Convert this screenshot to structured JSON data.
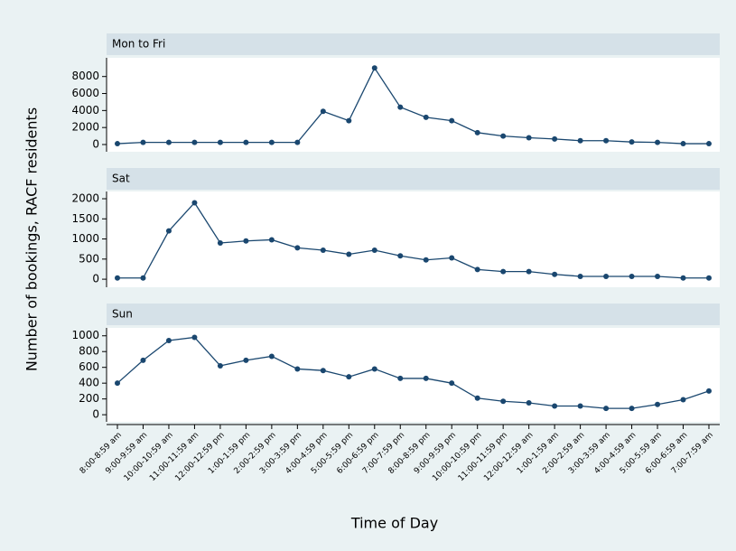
{
  "y_label": "Number of bookings, RACF residents",
  "x_label": "Time of Day",
  "categories": [
    "8:00-8:59 am",
    "9:00-9:59 am",
    "10:00-10:59 am",
    "11:00-11:59 am",
    "12:00-12:59 pm",
    "1:00-1:59 pm",
    "2:00-2:59 pm",
    "3:00-3:59 pm",
    "4:00-4:59 pm",
    "5:00-5:59 pm",
    "6:00-6:59 pm",
    "7:00-7:59 pm",
    "8:00-8:59 pm",
    "9:00-9:59 pm",
    "10:00-10:59 pm",
    "11:00-11:59 pm",
    "12:00-12:59 am",
    "1:00-1:59 am",
    "2:00-2:59 am",
    "3:00-3:59 am",
    "4:00-4:59 am",
    "5:00-5:59 am",
    "6:00-6:59 am",
    "7:00-7:59 am"
  ],
  "chart_data": [
    {
      "type": "line",
      "title": "Mon to Fri",
      "color": "#1a476f",
      "grid": false,
      "values": [
        100,
        250,
        250,
        250,
        250,
        250,
        250,
        250,
        3900,
        2800,
        9000,
        4400,
        3200,
        2800,
        1400,
        1000,
        800,
        650,
        450,
        450,
        300,
        250,
        100,
        100
      ],
      "ylim": [
        -850,
        10200
      ],
      "yticks": [
        0,
        2000,
        4000,
        6000,
        8000
      ]
    },
    {
      "type": "line",
      "title": "Sat",
      "color": "#1a476f",
      "grid": false,
      "values": [
        30,
        30,
        1200,
        1900,
        900,
        950,
        980,
        780,
        720,
        620,
        720,
        580,
        480,
        530,
        240,
        190,
        190,
        120,
        70,
        70,
        70,
        70,
        30,
        30
      ],
      "ylim": [
        -200,
        2180
      ],
      "yticks": [
        0,
        500,
        1000,
        1500,
        2000
      ]
    },
    {
      "type": "line",
      "title": "Sun",
      "color": "#1a476f",
      "grid": false,
      "values": [
        400,
        690,
        940,
        980,
        620,
        690,
        740,
        580,
        560,
        480,
        580,
        460,
        460,
        400,
        210,
        170,
        150,
        110,
        110,
        80,
        80,
        130,
        190,
        300
      ],
      "ylim": [
        -90,
        1100
      ],
      "yticks": [
        0,
        200,
        400,
        600,
        800,
        1000
      ]
    }
  ]
}
